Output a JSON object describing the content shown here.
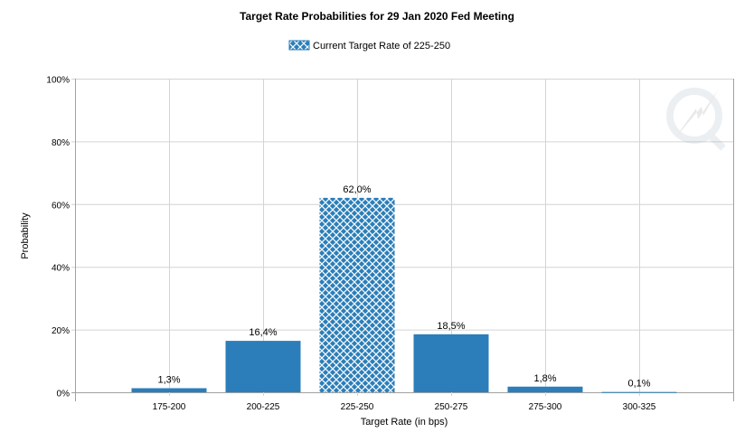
{
  "chart_data": {
    "type": "bar",
    "title": "Target Rate Probabilities for 29 Jan 2020 Fed Meeting",
    "legend": {
      "label": "Current Target Rate of 225-250",
      "placement": "top-center"
    },
    "xlabel": "Target Rate (in bps)",
    "ylabel": "Probability",
    "categories": [
      "175-200",
      "200-225",
      "225-250",
      "250-275",
      "275-300",
      "300-325"
    ],
    "values": [
      1.3,
      16.4,
      62.0,
      18.5,
      1.8,
      0.1
    ],
    "data_labels": [
      "1,3%",
      "16,4%",
      "62,0%",
      "18,5%",
      "1,8%",
      "0,1%"
    ],
    "highlight_category": "225-250",
    "yticks": [
      "0%",
      "20%",
      "40%",
      "60%",
      "80%",
      "100%"
    ],
    "ylim": [
      0,
      100
    ],
    "grid": true,
    "colors": {
      "bar": "#2b7eb9",
      "grid": "#d4d4d4",
      "axis": "#a0a0a0"
    }
  }
}
